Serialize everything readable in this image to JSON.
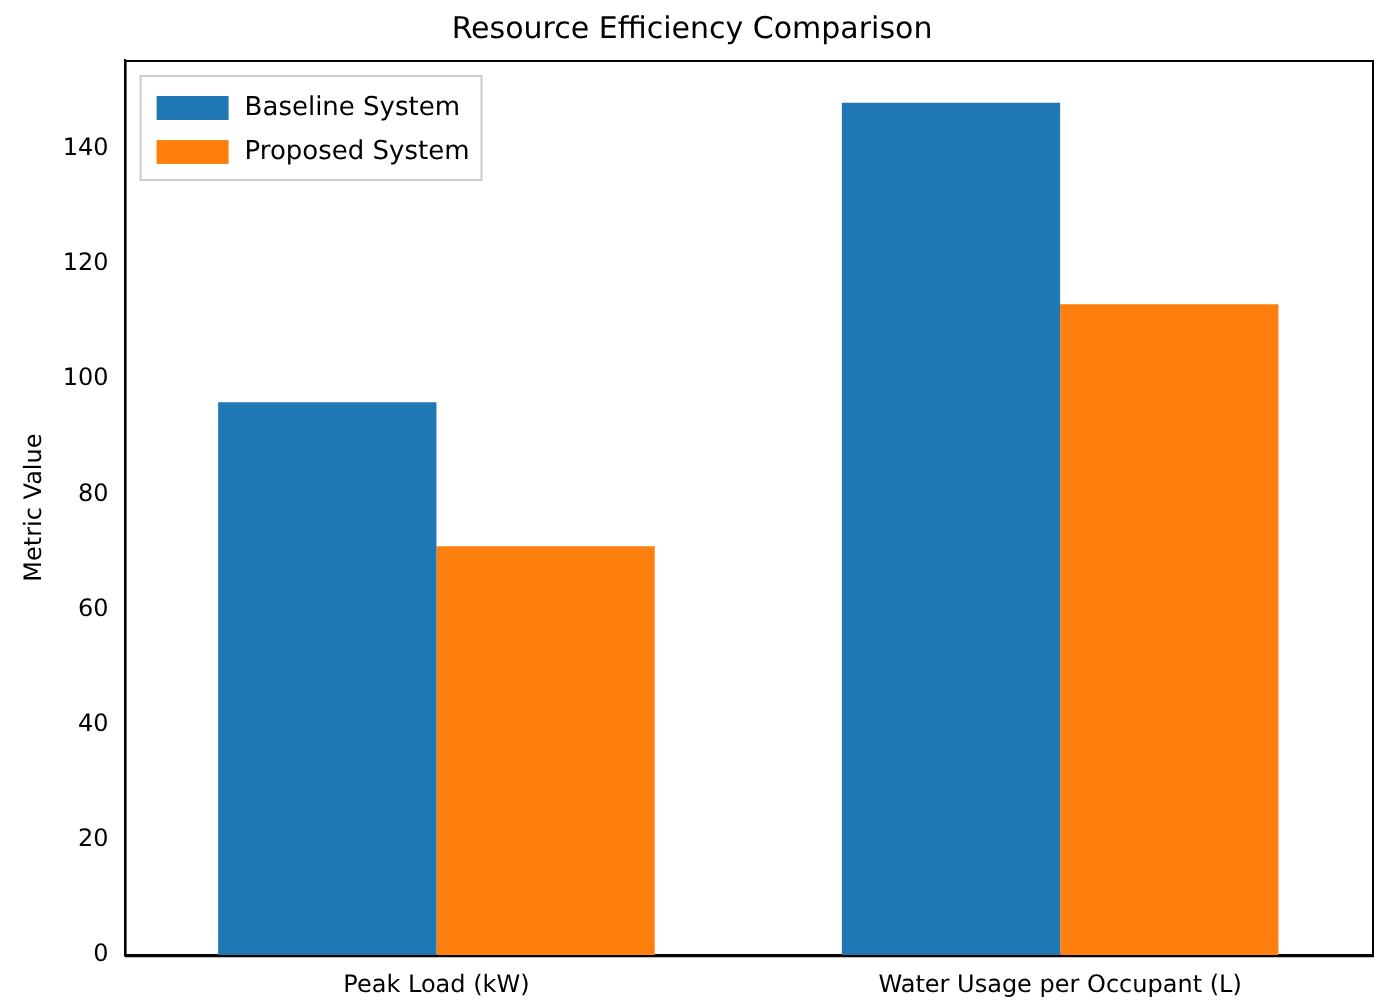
{
  "chart_data": {
    "type": "bar",
    "title": "Resource Efficiency Comparison",
    "ylabel": "Metric Value",
    "categories": [
      "Peak Load (kW)",
      "Water Usage per Occupant (L)"
    ],
    "series": [
      {
        "name": "Baseline System",
        "color": "#1f77b4",
        "values": [
          96,
          148
        ]
      },
      {
        "name": "Proposed System",
        "color": "#ff7f0e",
        "values": [
          71,
          113
        ]
      }
    ],
    "ylim": [
      0,
      155.4
    ],
    "yticks": [
      0,
      20,
      40,
      60,
      80,
      100,
      120,
      140
    ],
    "grid": false,
    "legend": "top left"
  }
}
